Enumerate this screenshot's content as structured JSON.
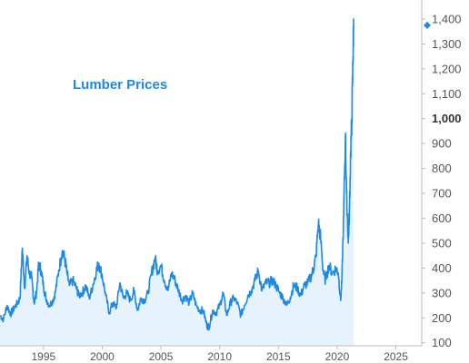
{
  "chart_data": {
    "type": "line",
    "title": "Lumber Prices",
    "xlabel": "",
    "ylabel": "",
    "xlim": [
      1991.3,
      2027.2
    ],
    "ylim": [
      88,
      1440
    ],
    "grid": false,
    "y_axis_side": "right",
    "y_ticks": [
      {
        "value": 100,
        "label": "100",
        "major": false
      },
      {
        "value": 200,
        "label": "200",
        "major": false
      },
      {
        "value": 300,
        "label": "300",
        "major": false
      },
      {
        "value": 400,
        "label": "400",
        "major": false
      },
      {
        "value": 500,
        "label": "500",
        "major": false
      },
      {
        "value": 600,
        "label": "600",
        "major": false
      },
      {
        "value": 700,
        "label": "700",
        "major": false
      },
      {
        "value": 800,
        "label": "800",
        "major": false
      },
      {
        "value": 900,
        "label": "900",
        "major": false
      },
      {
        "value": 1000,
        "label": "1,000",
        "major": true
      },
      {
        "value": 1100,
        "label": "1,100",
        "major": false
      },
      {
        "value": 1200,
        "label": "1,200",
        "major": false
      },
      {
        "value": 1300,
        "label": "1,300",
        "major": false
      },
      {
        "value": 1400,
        "label": "1,400",
        "major": false
      }
    ],
    "x_ticks": [
      {
        "value": 1995,
        "label": "1995"
      },
      {
        "value": 2000,
        "label": "2000"
      },
      {
        "value": 2005,
        "label": "2005"
      },
      {
        "value": 2010,
        "label": "2010"
      },
      {
        "value": 2015,
        "label": "2015"
      },
      {
        "value": 2020,
        "label": "2020"
      },
      {
        "value": 2025,
        "label": "2025"
      }
    ],
    "colors": {
      "line": "#1e88e5",
      "fill": "#e6f3fd",
      "title": "#1e88e5",
      "marker": "#1e88e5",
      "axis": "#bdbdbd"
    },
    "last_value_marker": 1375,
    "series": [
      {
        "x": [
          1991.3,
          1991.6,
          1991.9,
          1992.2,
          1992.5,
          1992.8,
          1993.0,
          1993.2,
          1993.4,
          1993.6,
          1993.8,
          1994.0,
          1994.2,
          1994.4,
          1994.6,
          1994.8,
          1995.0,
          1995.2,
          1995.5,
          1995.8,
          1996.0,
          1996.3,
          1996.6,
          1996.8,
          1997.0,
          1997.2,
          1997.5,
          1997.8,
          1998.0,
          1998.3,
          1998.6,
          1998.9,
          1999.2,
          1999.5,
          1999.7,
          2000.0,
          2000.3,
          2000.6,
          2000.9,
          2001.2,
          2001.5,
          2001.8,
          2002.1,
          2002.4,
          2002.7,
          2003.0,
          2003.3,
          2003.6,
          2003.9,
          2004.2,
          2004.5,
          2004.7,
          2005.0,
          2005.3,
          2005.6,
          2005.9,
          2006.2,
          2006.5,
          2006.8,
          2007.1,
          2007.4,
          2007.7,
          2008.0,
          2008.3,
          2008.6,
          2008.9,
          2009.1,
          2009.4,
          2009.7,
          2010.0,
          2010.3,
          2010.6,
          2010.9,
          2011.2,
          2011.5,
          2011.8,
          2012.1,
          2012.4,
          2012.7,
          2013.0,
          2013.3,
          2013.6,
          2013.9,
          2014.2,
          2014.5,
          2014.8,
          2015.1,
          2015.4,
          2015.7,
          2016.0,
          2016.3,
          2016.6,
          2016.9,
          2017.2,
          2017.5,
          2017.8,
          2018.0,
          2018.2,
          2018.4,
          2018.6,
          2018.8,
          2019.0,
          2019.3,
          2019.6,
          2019.9,
          2020.1,
          2020.3,
          2020.4,
          2020.55,
          2020.7,
          2020.8,
          2020.95,
          2021.05,
          2021.15,
          2021.25,
          2021.35,
          2021.4
        ],
        "y": [
          210,
          195,
          250,
          215,
          240,
          260,
          280,
          480,
          320,
          450,
          380,
          360,
          260,
          300,
          420,
          390,
          330,
          280,
          250,
          270,
          300,
          390,
          470,
          440,
          380,
          330,
          350,
          320,
          290,
          300,
          330,
          280,
          330,
          390,
          420,
          370,
          290,
          220,
          260,
          240,
          340,
          280,
          300,
          270,
          310,
          230,
          280,
          270,
          300,
          380,
          440,
          390,
          410,
          350,
          310,
          380,
          350,
          310,
          270,
          290,
          260,
          300,
          250,
          230,
          230,
          170,
          165,
          230,
          220,
          250,
          300,
          210,
          260,
          280,
          260,
          210,
          250,
          290,
          310,
          350,
          390,
          310,
          340,
          340,
          350,
          330,
          300,
          280,
          250,
          280,
          330,
          320,
          290,
          330,
          340,
          370,
          400,
          450,
          580,
          520,
          390,
          350,
          410,
          380,
          400,
          380,
          270,
          350,
          610,
          930,
          700,
          500,
          640,
          870,
          1000,
          1250,
          1375
        ]
      }
    ]
  }
}
